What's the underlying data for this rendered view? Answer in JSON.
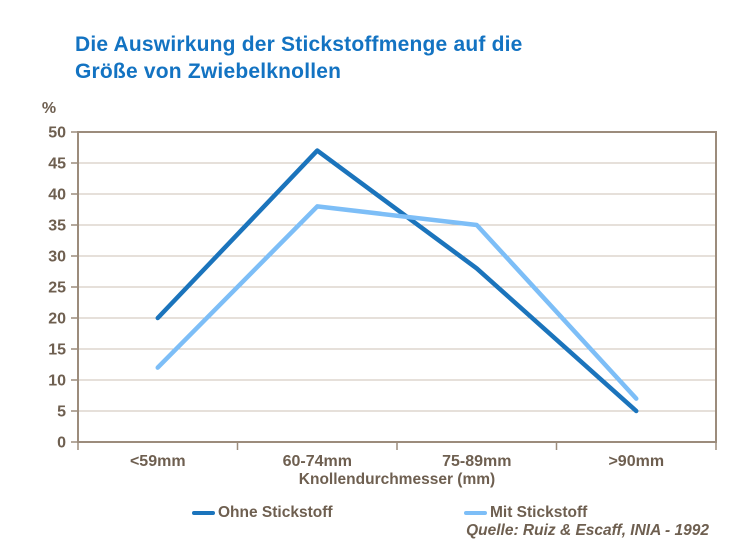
{
  "slide": {
    "title_line1": "Die Auswirkung der Stickstoffmenge auf die",
    "title_line2": "Größe von Zwiebelknollen",
    "source": "Quelle: Ruiz & Escaff, INIA - 1992"
  },
  "colors": {
    "title": "#1373c2",
    "text": "#6e5f50",
    "axis": "#9c8c7c",
    "gridline": "#ccc1b4",
    "background": "#ffffff"
  },
  "chart_data": {
    "type": "line",
    "title": "Die Auswirkung der Stickstoffmenge auf die Größe von Zwiebelknollen",
    "xlabel": "Knollendurchmesser (mm)",
    "ylabel": "%",
    "categories": [
      "<59mm",
      "60-74mm",
      "75-89mm",
      ">90mm"
    ],
    "series": [
      {
        "name": "Ohne Stickstoff",
        "values": [
          20,
          47,
          28,
          5
        ],
        "color": "#1b74bc"
      },
      {
        "name": "Mit Stickstoff",
        "values": [
          12,
          38,
          35,
          7
        ],
        "color": "#7dbef7"
      }
    ],
    "ylim": [
      0,
      50
    ],
    "y_ticks": [
      0,
      5,
      10,
      15,
      20,
      25,
      30,
      35,
      40,
      45,
      50
    ],
    "grid": true,
    "legend_position": "bottom"
  }
}
